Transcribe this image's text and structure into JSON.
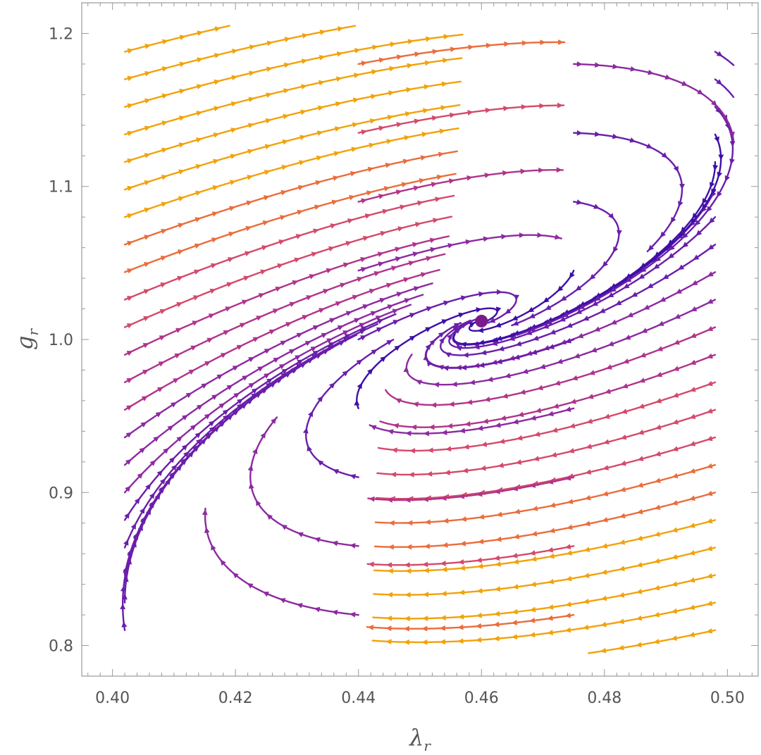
{
  "chart_data": {
    "type": "streamplot",
    "xlabel": "λ",
    "xlabel_sub": "r",
    "ylabel": "g",
    "ylabel_sub": "r",
    "xlim": [
      0.395,
      0.505
    ],
    "ylim": [
      0.78,
      1.22
    ],
    "xticks": [
      0.4,
      0.42,
      0.44,
      0.46,
      0.48,
      0.5
    ],
    "xtick_labels": [
      "0.40",
      "0.42",
      "0.44",
      "0.46",
      "0.48",
      "0.50"
    ],
    "yticks": [
      0.8,
      0.9,
      1.0,
      1.1,
      1.2
    ],
    "ytick_labels": [
      "0.8",
      "0.9",
      "1.0",
      "1.1",
      "1.2"
    ],
    "grid": false,
    "legend": "none",
    "fixed_point": {
      "x": 0.46,
      "y": 1.012,
      "color": "#7a1a8c"
    },
    "color_scale": {
      "slow": "#3d0fa8",
      "mid": "#9a2fa0",
      "fast": "#f2a20a"
    },
    "stream_colors": [
      "#3d0fa8",
      "#6a1eaa",
      "#8c2aa0",
      "#b0348a",
      "#d44a6a",
      "#ea6d3c",
      "#f2a20a"
    ]
  }
}
